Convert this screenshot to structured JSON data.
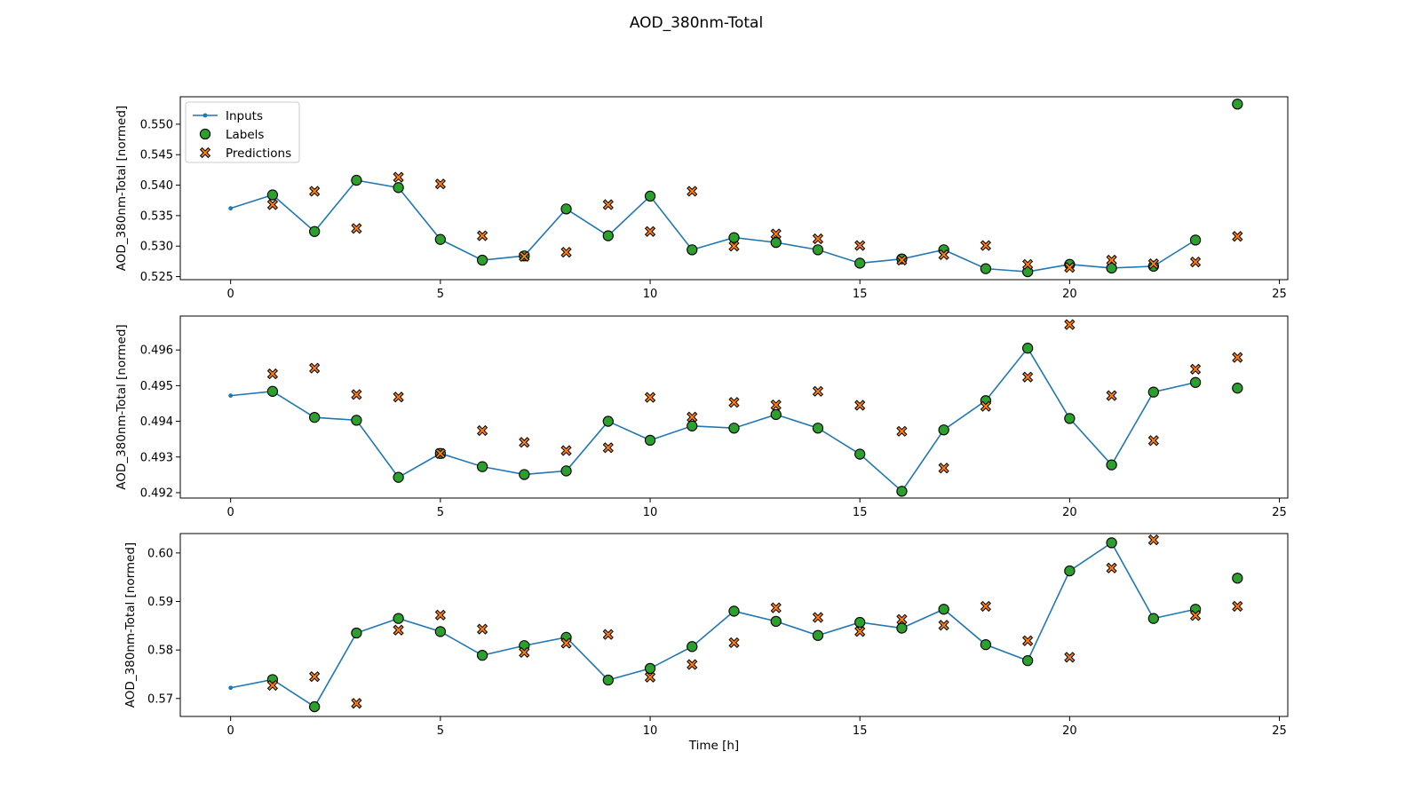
{
  "figure": {
    "title": "AOD_380nm-Total",
    "xlabel": "Time [h]"
  },
  "legend": {
    "position": "upper-left of first panel",
    "entries": [
      "Inputs",
      "Labels",
      "Predictions"
    ]
  },
  "colors": {
    "inputs": "#1f77b4",
    "labels": "#2ca02c",
    "predictions": "#ff7f0e",
    "edge": "#000000"
  },
  "chart_data": [
    {
      "type": "line",
      "ylabel": "AOD_380nm-Total [normed]",
      "xlim": [
        -1.2,
        25.2
      ],
      "ylim": [
        0.5245,
        0.5545
      ],
      "xticks": [
        0,
        5,
        10,
        15,
        20,
        25
      ],
      "yticks": [
        0.525,
        0.53,
        0.535,
        0.54,
        0.545,
        0.55
      ],
      "ytick_labels": [
        "0.525",
        "0.530",
        "0.535",
        "0.540",
        "0.545",
        "0.550"
      ],
      "series": [
        {
          "name": "Inputs",
          "x": [
            0,
            1,
            2,
            3,
            4,
            5,
            6,
            7,
            8,
            9,
            10,
            11,
            12,
            13,
            14,
            15,
            16,
            17,
            18,
            19,
            20,
            21,
            22,
            23
          ],
          "values": [
            0.5362,
            0.5384,
            0.5324,
            0.5408,
            0.5396,
            0.5311,
            0.5277,
            0.5284,
            0.5361,
            0.5317,
            0.5382,
            0.5294,
            0.5314,
            0.5306,
            0.5294,
            0.5272,
            0.5279,
            0.5294,
            0.5263,
            0.5258,
            0.527,
            0.5264,
            0.5267,
            0.531
          ]
        },
        {
          "name": "Labels",
          "x": [
            1,
            2,
            3,
            4,
            5,
            6,
            7,
            8,
            9,
            10,
            11,
            12,
            13,
            14,
            15,
            16,
            17,
            18,
            19,
            20,
            21,
            22,
            23,
            24
          ],
          "values": [
            0.5384,
            0.5324,
            0.5408,
            0.5396,
            0.5311,
            0.5277,
            0.5284,
            0.5361,
            0.5317,
            0.5382,
            0.5294,
            0.5314,
            0.5306,
            0.5294,
            0.5272,
            0.5279,
            0.5294,
            0.5263,
            0.5258,
            0.527,
            0.5264,
            0.5267,
            0.531,
            0.5533
          ]
        },
        {
          "name": "Predictions",
          "x": [
            1,
            2,
            3,
            4,
            5,
            6,
            7,
            8,
            9,
            10,
            11,
            12,
            13,
            14,
            15,
            16,
            17,
            18,
            19,
            20,
            21,
            22,
            23,
            24
          ],
          "values": [
            0.5368,
            0.539,
            0.5329,
            0.5413,
            0.5402,
            0.5317,
            0.5283,
            0.529,
            0.5368,
            0.5324,
            0.539,
            0.53,
            0.532,
            0.5312,
            0.5301,
            0.5277,
            0.5286,
            0.5301,
            0.527,
            0.5265,
            0.5277,
            0.5271,
            0.5274,
            0.5316
          ]
        }
      ]
    },
    {
      "type": "line",
      "ylabel": "AOD_380nm-Total [normed]",
      "xlim": [
        -1.2,
        25.2
      ],
      "ylim": [
        0.49185,
        0.49695
      ],
      "xticks": [
        0,
        5,
        10,
        15,
        20,
        25
      ],
      "yticks": [
        0.492,
        0.493,
        0.494,
        0.495,
        0.496
      ],
      "ytick_labels": [
        "0.492",
        "0.493",
        "0.494",
        "0.495",
        "0.496"
      ],
      "series": [
        {
          "name": "Inputs",
          "x": [
            0,
            1,
            2,
            3,
            4,
            5,
            6,
            7,
            8,
            9,
            10,
            11,
            12,
            13,
            14,
            15,
            16,
            17,
            18,
            19,
            20,
            21,
            22,
            23
          ],
          "values": [
            0.49472,
            0.49484,
            0.49411,
            0.49403,
            0.49243,
            0.4931,
            0.49273,
            0.49251,
            0.49261,
            0.494,
            0.49347,
            0.49387,
            0.49381,
            0.49419,
            0.49381,
            0.49308,
            0.49204,
            0.49376,
            0.49458,
            0.49605,
            0.49408,
            0.49278,
            0.49482,
            0.49509
          ]
        },
        {
          "name": "Labels",
          "x": [
            1,
            2,
            3,
            4,
            5,
            6,
            7,
            8,
            9,
            10,
            11,
            12,
            13,
            14,
            15,
            16,
            17,
            18,
            19,
            20,
            21,
            22,
            23,
            24
          ],
          "values": [
            0.49484,
            0.49411,
            0.49403,
            0.49243,
            0.4931,
            0.49273,
            0.49251,
            0.49261,
            0.494,
            0.49347,
            0.49387,
            0.49381,
            0.49419,
            0.49381,
            0.49308,
            0.49204,
            0.49376,
            0.49458,
            0.49605,
            0.49408,
            0.49278,
            0.49482,
            0.49509,
            0.49493
          ]
        },
        {
          "name": "Predictions",
          "x": [
            1,
            2,
            3,
            4,
            5,
            6,
            7,
            8,
            9,
            10,
            11,
            12,
            13,
            14,
            15,
            16,
            17,
            18,
            19,
            20,
            21,
            22,
            23,
            24
          ],
          "values": [
            0.49533,
            0.49549,
            0.49475,
            0.49468,
            0.4931,
            0.49374,
            0.49341,
            0.49318,
            0.49326,
            0.49467,
            0.49412,
            0.49453,
            0.49446,
            0.49484,
            0.49445,
            0.49372,
            0.49269,
            0.49442,
            0.49524,
            0.49671,
            0.49472,
            0.49346,
            0.49546,
            0.49579
          ]
        }
      ]
    },
    {
      "type": "line",
      "xlabel": "Time [h]",
      "ylabel": "AOD_380nm-Total [normed]",
      "xlim": [
        -1.2,
        25.2
      ],
      "ylim": [
        0.5663,
        0.604
      ],
      "xticks": [
        0,
        5,
        10,
        15,
        20,
        25
      ],
      "yticks": [
        0.57,
        0.58,
        0.59,
        0.6
      ],
      "ytick_labels": [
        "0.57",
        "0.58",
        "0.59",
        "0.60"
      ],
      "series": [
        {
          "name": "Inputs",
          "x": [
            0,
            1,
            2,
            3,
            4,
            5,
            6,
            7,
            8,
            9,
            10,
            11,
            12,
            13,
            14,
            15,
            16,
            17,
            18,
            19,
            20,
            21,
            22,
            23
          ],
          "values": [
            0.5722,
            0.5739,
            0.5683,
            0.5835,
            0.5865,
            0.5838,
            0.5789,
            0.5809,
            0.5826,
            0.5738,
            0.5762,
            0.5807,
            0.588,
            0.5859,
            0.583,
            0.5857,
            0.5845,
            0.5884,
            0.5811,
            0.5778,
            0.5963,
            0.6021,
            0.5865,
            0.5884
          ]
        },
        {
          "name": "Labels",
          "x": [
            1,
            2,
            3,
            4,
            5,
            6,
            7,
            8,
            9,
            10,
            11,
            12,
            13,
            14,
            15,
            16,
            17,
            18,
            19,
            20,
            21,
            22,
            23,
            24
          ],
          "values": [
            0.5739,
            0.5683,
            0.5835,
            0.5865,
            0.5838,
            0.5789,
            0.5809,
            0.5826,
            0.5738,
            0.5762,
            0.5807,
            0.588,
            0.5859,
            0.583,
            0.5857,
            0.5845,
            0.5884,
            0.5811,
            0.5778,
            0.5963,
            0.6021,
            0.5865,
            0.5884,
            0.5948
          ]
        },
        {
          "name": "Predictions",
          "x": [
            1,
            2,
            3,
            4,
            5,
            6,
            7,
            8,
            9,
            10,
            11,
            12,
            13,
            14,
            15,
            16,
            17,
            18,
            19,
            20,
            21,
            22,
            23,
            24
          ],
          "values": [
            0.5727,
            0.5745,
            0.569,
            0.5841,
            0.5872,
            0.5843,
            0.5795,
            0.5814,
            0.5832,
            0.5744,
            0.577,
            0.5815,
            0.5887,
            0.5867,
            0.5838,
            0.5863,
            0.5851,
            0.589,
            0.5819,
            0.5785,
            0.5969,
            0.6027,
            0.5871,
            0.589
          ]
        }
      ]
    }
  ]
}
